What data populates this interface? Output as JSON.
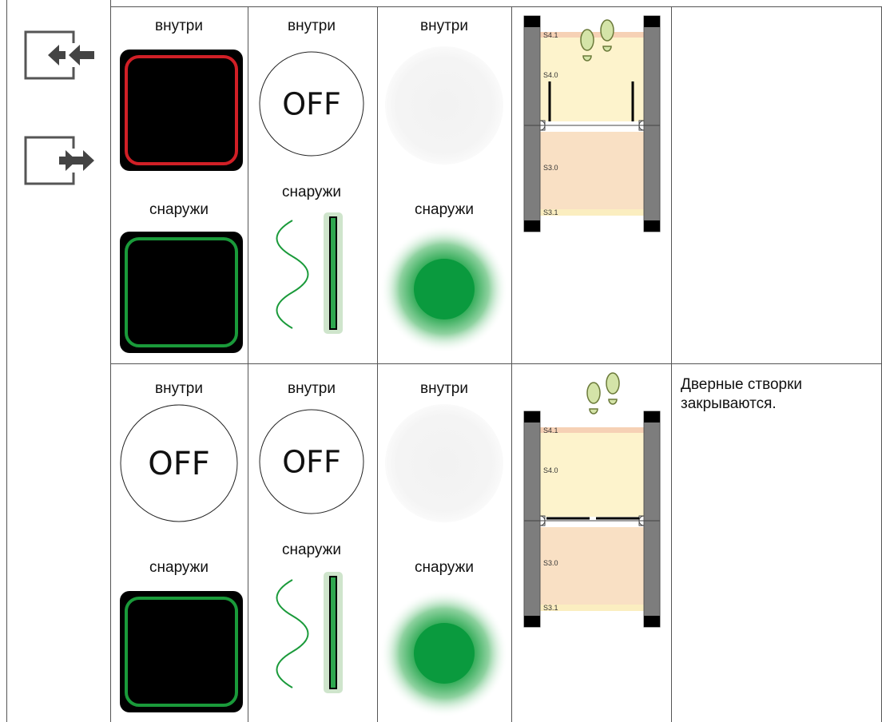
{
  "table": {
    "rows": [
      {
        "cells": [
          {
            "top_label": "внутри",
            "bottom_label": "снаружи"
          },
          {
            "top_label": "внутри",
            "top_text": "OFF",
            "bottom_label": "снаружи"
          },
          {
            "top_label": "внутри",
            "bottom_label": "снаружи"
          },
          {
            "zones": [
              "S4.1",
              "S4.0",
              "S3.0",
              "S3.1"
            ]
          }
        ]
      },
      {
        "cells": [
          {
            "top_label": "внутри",
            "top_text": "OFF",
            "bottom_label": "снаружи"
          },
          {
            "top_label": "внутри",
            "top_text": "OFF",
            "bottom_label": "снаружи"
          },
          {
            "top_label": "внутри",
            "bottom_label": "снаружи"
          },
          {
            "zones": [
              "S4.1",
              "S4.0",
              "S3.0",
              "S3.1"
            ]
          },
          {
            "text": "Дверные створки закрываются."
          }
        ]
      }
    ]
  }
}
